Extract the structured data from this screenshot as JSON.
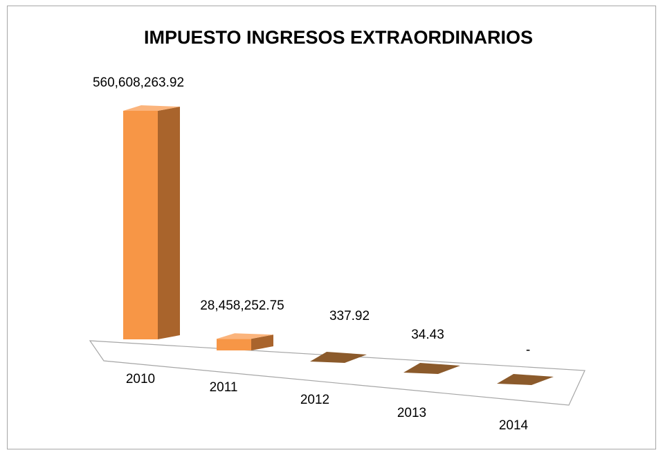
{
  "chart_data": {
    "type": "bar3d",
    "title": "IMPUESTO INGRESOS EXTRAORDINARIOS",
    "categories": [
      "2010",
      "2011",
      "2012",
      "2013",
      "2014"
    ],
    "values": [
      560608263.92,
      28458252.75,
      337.92,
      34.43,
      0
    ],
    "value_labels": [
      "560,608,263.92",
      "28,458,252.75",
      "337.92",
      "34.43",
      "-"
    ],
    "color": "#f79646"
  }
}
